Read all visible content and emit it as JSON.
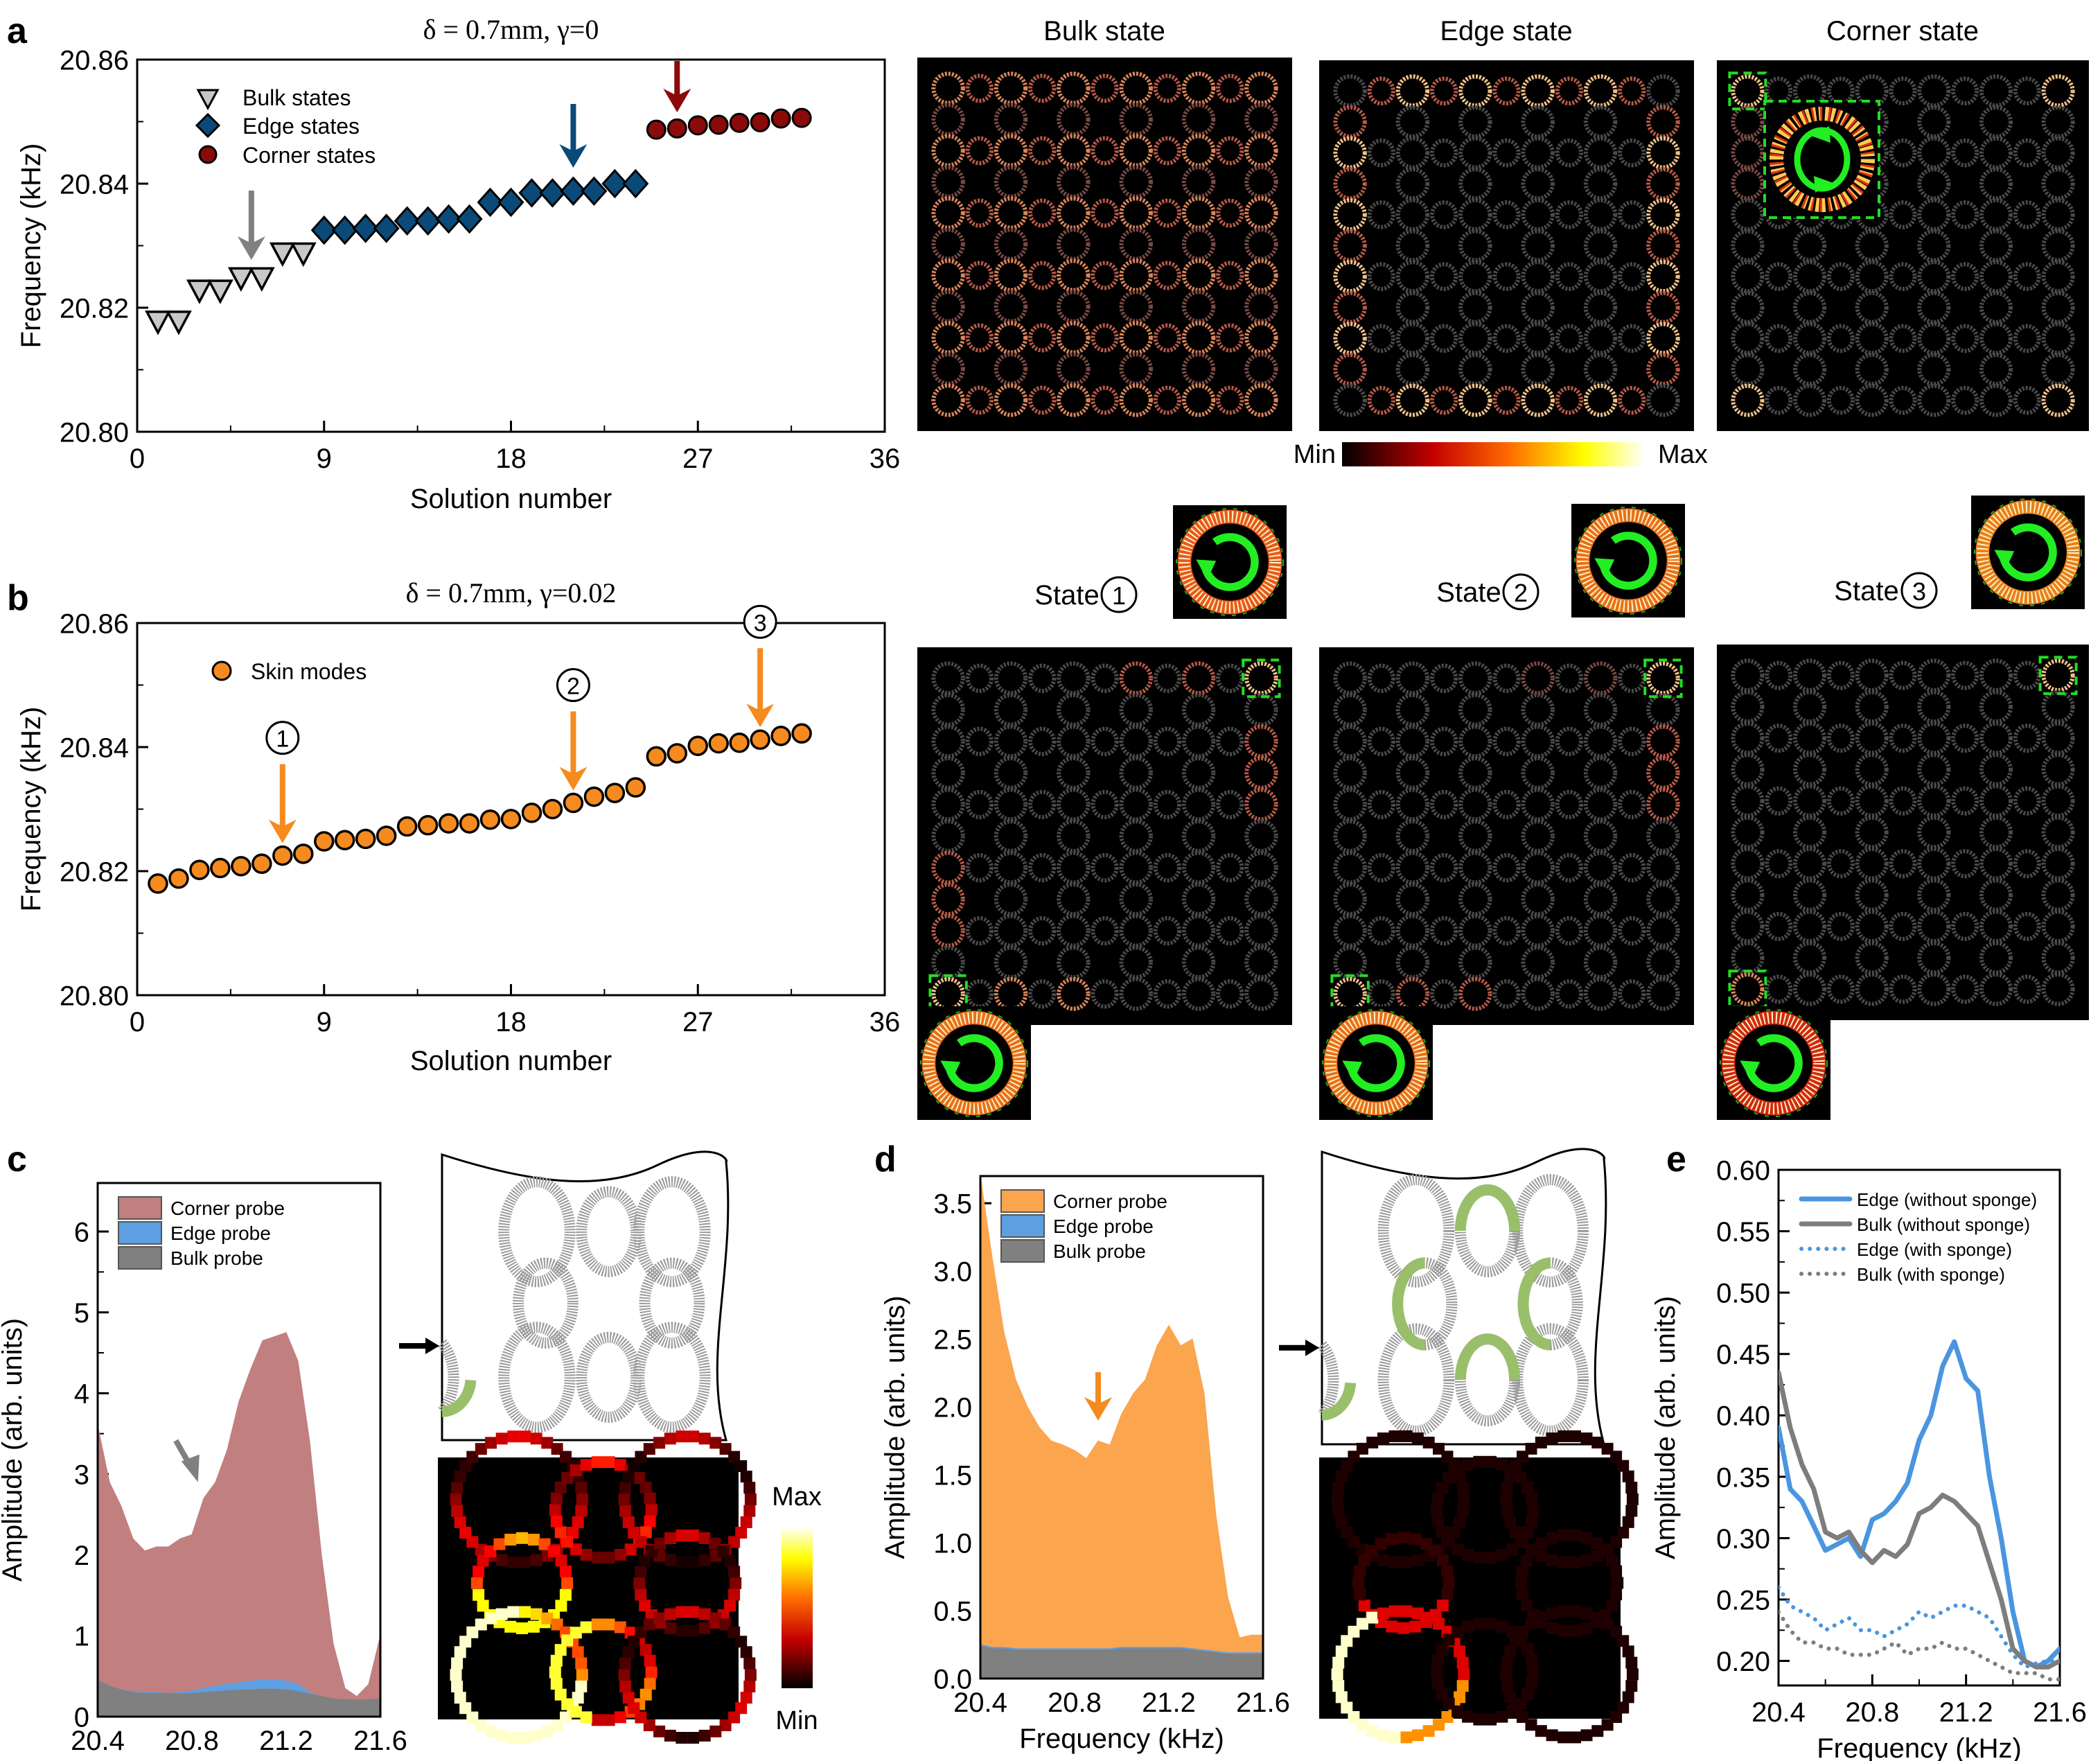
{
  "figure": {
    "panel_labels": [
      "a",
      "b",
      "c",
      "d",
      "e"
    ],
    "colors": {
      "bulk_marker": "#c8c8c8",
      "edge_marker": "#0b4a78",
      "corner_marker": "#8b0a0a",
      "skin_marker": "#f58a1f",
      "arrow_bulk": "#808080",
      "arrow_edge": "#0b4a78",
      "arrow_corner": "#8b0a0a",
      "arrow_skin": "#f58a1f",
      "corner_probe_fill": "#c17f7f",
      "edge_probe_fill": "#5d9fe0",
      "bulk_probe_fill": "#808080",
      "corner_probe_fill_d": "#fba54e",
      "line_edge": "#4a95e0",
      "line_bulk": "#7d7d7d",
      "highlight_box": "#22dd22",
      "vortex_arrow": "#22ee22"
    }
  },
  "chart_data": [
    {
      "id": "a",
      "type": "scatter",
      "title": "δ = 0.7mm, γ=0",
      "xlabel": "Solution number",
      "ylabel": "Frequency (kHz)",
      "xlim": [
        0,
        36
      ],
      "ylim": [
        20.8,
        20.86
      ],
      "xticks": [
        "0",
        "9",
        "18",
        "27",
        "36"
      ],
      "yticks": [
        "20.80",
        "20.82",
        "20.84",
        "20.86"
      ],
      "legend": [
        "Bulk states",
        "Edge states",
        "Corner states"
      ],
      "legend_position": "top-left",
      "series": [
        {
          "name": "Bulk states",
          "marker": "triangle-down",
          "x": [
            1,
            2,
            3,
            4,
            5,
            6,
            7,
            8
          ],
          "y": [
            20.818,
            20.818,
            20.823,
            20.823,
            20.825,
            20.825,
            20.829,
            20.829
          ]
        },
        {
          "name": "Edge states",
          "marker": "diamond",
          "x": [
            9,
            10,
            11,
            12,
            13,
            14,
            15,
            16,
            17,
            18,
            19,
            20,
            21,
            22,
            23,
            24
          ],
          "y": [
            20.8325,
            20.8325,
            20.8328,
            20.8328,
            20.834,
            20.834,
            20.8343,
            20.8343,
            20.837,
            20.837,
            20.8385,
            20.8385,
            20.8388,
            20.8388,
            20.84,
            20.84
          ]
        },
        {
          "name": "Corner states",
          "marker": "circle",
          "x": [
            25,
            26,
            27,
            28,
            29,
            30,
            31,
            32
          ],
          "y": [
            20.8487,
            20.8489,
            20.8494,
            20.8495,
            20.8498,
            20.8499,
            20.8505,
            20.8506
          ]
        }
      ],
      "arrows": [
        {
          "series": "Bulk states",
          "x": 5.5
        },
        {
          "series": "Edge states",
          "x": 21
        },
        {
          "series": "Corner states",
          "x": 26
        }
      ]
    },
    {
      "id": "b",
      "type": "scatter",
      "title": "δ = 0.7mm, γ=0.02",
      "xlabel": "Solution number",
      "ylabel": "Frequency (kHz)",
      "xlim": [
        0,
        36
      ],
      "ylim": [
        20.8,
        20.86
      ],
      "xticks": [
        "0",
        "9",
        "18",
        "27",
        "36"
      ],
      "yticks": [
        "20.80",
        "20.82",
        "20.84",
        "20.86"
      ],
      "legend": [
        "Skin modes"
      ],
      "legend_position": "top-left",
      "series": [
        {
          "name": "Skin modes",
          "marker": "circle",
          "x": [
            1,
            2,
            3,
            4,
            5,
            6,
            7,
            8,
            9,
            10,
            11,
            12,
            13,
            14,
            15,
            16,
            17,
            18,
            19,
            20,
            21,
            22,
            23,
            24,
            25,
            26,
            27,
            28,
            29,
            30,
            31,
            32
          ],
          "y": [
            20.818,
            20.8188,
            20.8202,
            20.8205,
            20.8208,
            20.8212,
            20.8225,
            20.8228,
            20.8248,
            20.825,
            20.8252,
            20.8257,
            20.8272,
            20.8274,
            20.8277,
            20.8277,
            20.8283,
            20.8284,
            20.8294,
            20.83,
            20.831,
            20.832,
            20.8326,
            20.8335,
            20.8385,
            20.839,
            20.8402,
            20.8406,
            20.8407,
            20.8412,
            20.8418,
            20.8422
          ]
        }
      ],
      "annotations": [
        {
          "label": "1",
          "x": 7
        },
        {
          "label": "2",
          "x": 21
        },
        {
          "label": "3",
          "x": 30
        }
      ]
    },
    {
      "id": "c",
      "type": "area",
      "xlabel": "Frequency (kHz)",
      "ylabel": "Amplitude (arb. units)",
      "xlim": [
        20.4,
        21.6
      ],
      "ylim": [
        0,
        6.6
      ],
      "xticks": [
        "20.4",
        "20.8",
        "21.2",
        "21.6"
      ],
      "yticks": [
        "0",
        "1",
        "2",
        "3",
        "4",
        "5",
        "6"
      ],
      "legend": [
        "Corner probe",
        "Edge probe",
        "Bulk probe"
      ],
      "legend_position": "top-left",
      "x": [
        20.4,
        20.45,
        20.5,
        20.55,
        20.6,
        20.65,
        20.7,
        20.75,
        20.8,
        20.85,
        20.9,
        20.95,
        21.0,
        21.05,
        21.1,
        21.15,
        21.2,
        21.25,
        21.3,
        21.35,
        21.4,
        21.45,
        21.5,
        21.55,
        21.6
      ],
      "series": [
        {
          "name": "Corner probe",
          "values": [
            3.6,
            2.9,
            2.6,
            2.2,
            2.05,
            2.1,
            2.1,
            2.2,
            2.25,
            2.7,
            2.9,
            3.3,
            3.9,
            4.3,
            4.65,
            4.7,
            4.75,
            4.4,
            3.4,
            2.0,
            0.9,
            0.35,
            0.25,
            0.4,
            1.0
          ]
        },
        {
          "name": "Edge probe",
          "values": [
            0.42,
            0.38,
            0.33,
            0.31,
            0.3,
            0.3,
            0.29,
            0.3,
            0.32,
            0.35,
            0.38,
            0.4,
            0.42,
            0.44,
            0.46,
            0.46,
            0.44,
            0.4,
            0.3,
            0.24,
            0.22,
            0.21,
            0.21,
            0.21,
            0.22
          ]
        },
        {
          "name": "Bulk probe",
          "values": [
            0.45,
            0.38,
            0.33,
            0.3,
            0.29,
            0.29,
            0.29,
            0.28,
            0.29,
            0.3,
            0.31,
            0.32,
            0.33,
            0.33,
            0.34,
            0.34,
            0.33,
            0.31,
            0.28,
            0.25,
            0.22,
            0.21,
            0.21,
            0.21,
            0.22
          ]
        }
      ],
      "arrow": {
        "x": 20.82,
        "y": 2.9
      }
    },
    {
      "id": "d",
      "type": "area",
      "xlabel": "Frequency (kHz)",
      "ylabel": "Amplitude (arb. units)",
      "xlim": [
        20.4,
        21.6
      ],
      "ylim": [
        0,
        3.7
      ],
      "xticks": [
        "20.4",
        "20.8",
        "21.2",
        "21.6"
      ],
      "yticks": [
        "0.0",
        "0.5",
        "1.0",
        "1.5",
        "2.0",
        "2.5",
        "3.0",
        "3.5"
      ],
      "legend": [
        "Corner probe",
        "Edge probe",
        "Bulk probe"
      ],
      "legend_position": "top-left",
      "x": [
        20.4,
        20.45,
        20.5,
        20.55,
        20.6,
        20.65,
        20.7,
        20.75,
        20.8,
        20.85,
        20.9,
        20.95,
        21.0,
        21.05,
        21.1,
        21.15,
        21.2,
        21.25,
        21.3,
        21.35,
        21.4,
        21.45,
        21.5,
        21.55,
        21.6
      ],
      "series": [
        {
          "name": "Corner probe",
          "values": [
            3.7,
            3.1,
            2.55,
            2.2,
            2.0,
            1.85,
            1.75,
            1.72,
            1.68,
            1.62,
            1.75,
            1.72,
            1.95,
            2.1,
            2.2,
            2.45,
            2.6,
            2.45,
            2.5,
            2.1,
            1.2,
            0.6,
            0.3,
            0.32,
            0.32
          ]
        },
        {
          "name": "Edge probe",
          "values": [
            0.25,
            0.23,
            0.23,
            0.22,
            0.22,
            0.22,
            0.22,
            0.22,
            0.22,
            0.22,
            0.22,
            0.22,
            0.23,
            0.23,
            0.23,
            0.23,
            0.23,
            0.23,
            0.22,
            0.21,
            0.2,
            0.19,
            0.19,
            0.19,
            0.19
          ]
        },
        {
          "name": "Bulk probe",
          "values": [
            0.24,
            0.22,
            0.22,
            0.21,
            0.21,
            0.21,
            0.21,
            0.21,
            0.21,
            0.21,
            0.21,
            0.21,
            0.22,
            0.22,
            0.22,
            0.22,
            0.22,
            0.22,
            0.21,
            0.2,
            0.19,
            0.18,
            0.18,
            0.18,
            0.18
          ]
        }
      ],
      "arrow": {
        "x": 20.9,
        "y": 1.95
      }
    },
    {
      "id": "e",
      "type": "line",
      "xlabel": "Frequency (kHz)",
      "ylabel": "Amplitude (arb. units)",
      "xlim": [
        20.4,
        21.6
      ],
      "ylim": [
        0.18,
        0.6
      ],
      "xticks": [
        "20.4",
        "20.8",
        "21.2",
        "21.6"
      ],
      "yticks": [
        "0.20",
        "0.25",
        "0.30",
        "0.35",
        "0.40",
        "0.45",
        "0.50",
        "0.55",
        "0.60"
      ],
      "legend": [
        "Edge (without sponge)",
        "Bulk (without sponge)",
        "Edge (with sponge)",
        "Bulk (with sponge)"
      ],
      "legend_position": "top-right",
      "x": [
        20.4,
        20.45,
        20.5,
        20.55,
        20.6,
        20.65,
        20.7,
        20.75,
        20.8,
        20.85,
        20.9,
        20.95,
        21.0,
        21.05,
        21.1,
        21.15,
        21.2,
        21.25,
        21.3,
        21.35,
        21.4,
        21.45,
        21.5,
        21.55,
        21.6
      ],
      "series": [
        {
          "name": "Edge (without sponge)",
          "style": "solid",
          "values": [
            0.39,
            0.34,
            0.33,
            0.31,
            0.29,
            0.295,
            0.3,
            0.285,
            0.315,
            0.32,
            0.33,
            0.345,
            0.38,
            0.4,
            0.44,
            0.46,
            0.43,
            0.42,
            0.35,
            0.3,
            0.24,
            0.2,
            0.195,
            0.2,
            0.21
          ]
        },
        {
          "name": "Bulk (without sponge)",
          "style": "solid",
          "values": [
            0.435,
            0.39,
            0.36,
            0.34,
            0.305,
            0.3,
            0.305,
            0.29,
            0.28,
            0.29,
            0.285,
            0.295,
            0.32,
            0.325,
            0.335,
            0.33,
            0.32,
            0.31,
            0.28,
            0.25,
            0.21,
            0.2,
            0.195,
            0.195,
            0.2
          ]
        },
        {
          "name": "Edge (with sponge)",
          "style": "dotted",
          "values": [
            0.26,
            0.245,
            0.24,
            0.235,
            0.225,
            0.23,
            0.235,
            0.225,
            0.225,
            0.22,
            0.225,
            0.23,
            0.24,
            0.235,
            0.24,
            0.245,
            0.245,
            0.24,
            0.235,
            0.22,
            0.205,
            0.195,
            0.198,
            0.2,
            0.2
          ]
        },
        {
          "name": "Bulk (with sponge)",
          "style": "dotted",
          "values": [
            0.24,
            0.225,
            0.215,
            0.215,
            0.21,
            0.21,
            0.205,
            0.205,
            0.205,
            0.21,
            0.215,
            0.205,
            0.21,
            0.21,
            0.215,
            0.21,
            0.21,
            0.205,
            0.2,
            0.195,
            0.19,
            0.19,
            0.19,
            0.185,
            0.185
          ]
        }
      ]
    }
  ],
  "field_maps": {
    "titles": [
      "Bulk state",
      "Edge state",
      "Corner state"
    ],
    "colorbar": {
      "min_label": "Min",
      "max_label": "Max"
    },
    "state_labels": [
      {
        "text": "State",
        "number": "1"
      },
      {
        "text": "State",
        "number": "2"
      },
      {
        "text": "State",
        "number": "3"
      }
    ],
    "grid_size": 11
  },
  "panel_c": {
    "colorbar": {
      "min_label": "Min",
      "max_label": "Max"
    }
  }
}
